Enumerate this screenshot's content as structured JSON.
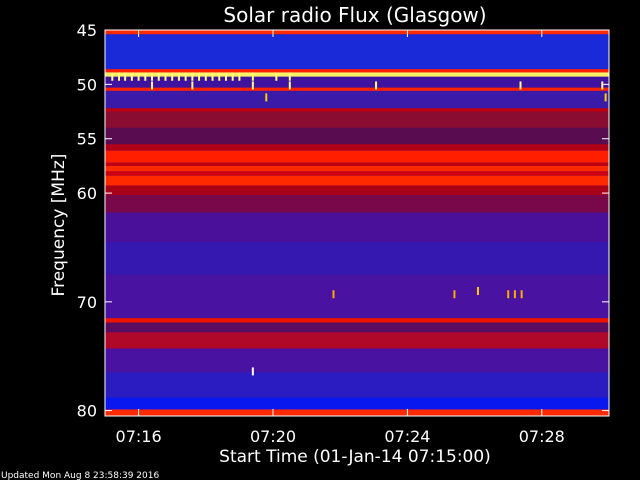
{
  "chart_data": {
    "type": "heatmap",
    "title": "Solar radio Flux (Glasgow)",
    "xlabel": "Start Time (01-Jan-14 07:15:00)",
    "ylabel": "Frequency [MHz]",
    "xlim": [
      "07:15:00",
      "07:30:00"
    ],
    "ylim": [
      45,
      80.5
    ],
    "x_ticks": [
      "07:16",
      "07:20",
      "07:24",
      "07:28"
    ],
    "y_ticks": [
      "45",
      "50",
      "55",
      "60",
      "70",
      "80"
    ],
    "bands": [
      {
        "freq_from": 45.0,
        "freq_to": 45.4,
        "color": "#ff2a00"
      },
      {
        "freq_from": 45.4,
        "freq_to": 48.6,
        "color": "#1a2ad8"
      },
      {
        "freq_from": 48.6,
        "freq_to": 48.9,
        "color": "#ff2000"
      },
      {
        "freq_from": 48.9,
        "freq_to": 49.3,
        "color": "#fff066"
      },
      {
        "freq_from": 49.3,
        "freq_to": 50.3,
        "color": "#4012a0"
      },
      {
        "freq_from": 50.3,
        "freq_to": 50.6,
        "color": "#ff2000"
      },
      {
        "freq_from": 50.6,
        "freq_to": 52.2,
        "color": "#3a1aa8"
      },
      {
        "freq_from": 52.2,
        "freq_to": 52.5,
        "color": "#c00010"
      },
      {
        "freq_from": 52.5,
        "freq_to": 54.0,
        "color": "#8a0c30"
      },
      {
        "freq_from": 54.0,
        "freq_to": 55.5,
        "color": "#5a0c50"
      },
      {
        "freq_from": 55.5,
        "freq_to": 56.1,
        "color": "#b00018"
      },
      {
        "freq_from": 56.1,
        "freq_to": 57.2,
        "color": "#ff1e00"
      },
      {
        "freq_from": 57.2,
        "freq_to": 57.5,
        "color": "#c00010"
      },
      {
        "freq_from": 57.5,
        "freq_to": 58.0,
        "color": "#ff2a00"
      },
      {
        "freq_from": 58.0,
        "freq_to": 58.4,
        "color": "#cc0010"
      },
      {
        "freq_from": 58.4,
        "freq_to": 59.3,
        "color": "#ff2a00"
      },
      {
        "freq_from": 59.3,
        "freq_to": 60.2,
        "color": "#a80018"
      },
      {
        "freq_from": 60.2,
        "freq_to": 61.8,
        "color": "#78084a"
      },
      {
        "freq_from": 61.8,
        "freq_to": 64.5,
        "color": "#4a109a"
      },
      {
        "freq_from": 64.5,
        "freq_to": 67.5,
        "color": "#3418b0"
      },
      {
        "freq_from": 67.5,
        "freq_to": 71.5,
        "color": "#4a12a0"
      },
      {
        "freq_from": 71.5,
        "freq_to": 71.9,
        "color": "#ee1400"
      },
      {
        "freq_from": 71.9,
        "freq_to": 72.8,
        "color": "#5a0c60"
      },
      {
        "freq_from": 72.8,
        "freq_to": 74.3,
        "color": "#b00828"
      },
      {
        "freq_from": 74.3,
        "freq_to": 76.5,
        "color": "#4a12a0"
      },
      {
        "freq_from": 76.5,
        "freq_to": 78.8,
        "color": "#2a1cc0"
      },
      {
        "freq_from": 78.8,
        "freq_to": 79.9,
        "color": "#0a18f0"
      },
      {
        "freq_from": 79.9,
        "freq_to": 80.5,
        "color": "#ff2a00"
      }
    ],
    "bursts": [
      {
        "freq": 49.3,
        "times": [
          "07:15:13",
          "07:15:25",
          "07:15:36",
          "07:15:48",
          "07:16:00",
          "07:16:12",
          "07:16:24",
          "07:16:36",
          "07:16:48",
          "07:17:00",
          "07:17:12",
          "07:17:24",
          "07:17:36",
          "07:17:48",
          "07:18:00",
          "07:18:12",
          "07:18:24",
          "07:18:36",
          "07:18:48",
          "07:19:00",
          "07:19:24",
          "07:20:06",
          "07:20:30"
        ],
        "color": "#ffff80"
      },
      {
        "freq": 50.1,
        "times": [
          "07:16:24",
          "07:17:36",
          "07:19:24",
          "07:20:30",
          "07:23:04",
          "07:27:22",
          "07:29:48"
        ],
        "color": "#ffff80"
      },
      {
        "freq": 51.2,
        "times": [
          "07:19:48",
          "07:29:54"
        ],
        "color": "#ffcc00"
      },
      {
        "freq": 69.0,
        "times": [
          "07:26:06"
        ],
        "color": "#ffcc00"
      },
      {
        "freq": 69.3,
        "times": [
          "07:21:48",
          "07:25:24",
          "07:27:00",
          "07:27:12",
          "07:27:24"
        ],
        "color": "#ffaa00"
      },
      {
        "freq": 76.4,
        "times": [
          "07:19:24"
        ],
        "color": "#ffffff"
      }
    ],
    "colors": {
      "background": "#000000",
      "text": "#ffffff"
    }
  },
  "footer": {
    "updated_text": "Updated Mon Aug  8 23:58:39 2016"
  }
}
